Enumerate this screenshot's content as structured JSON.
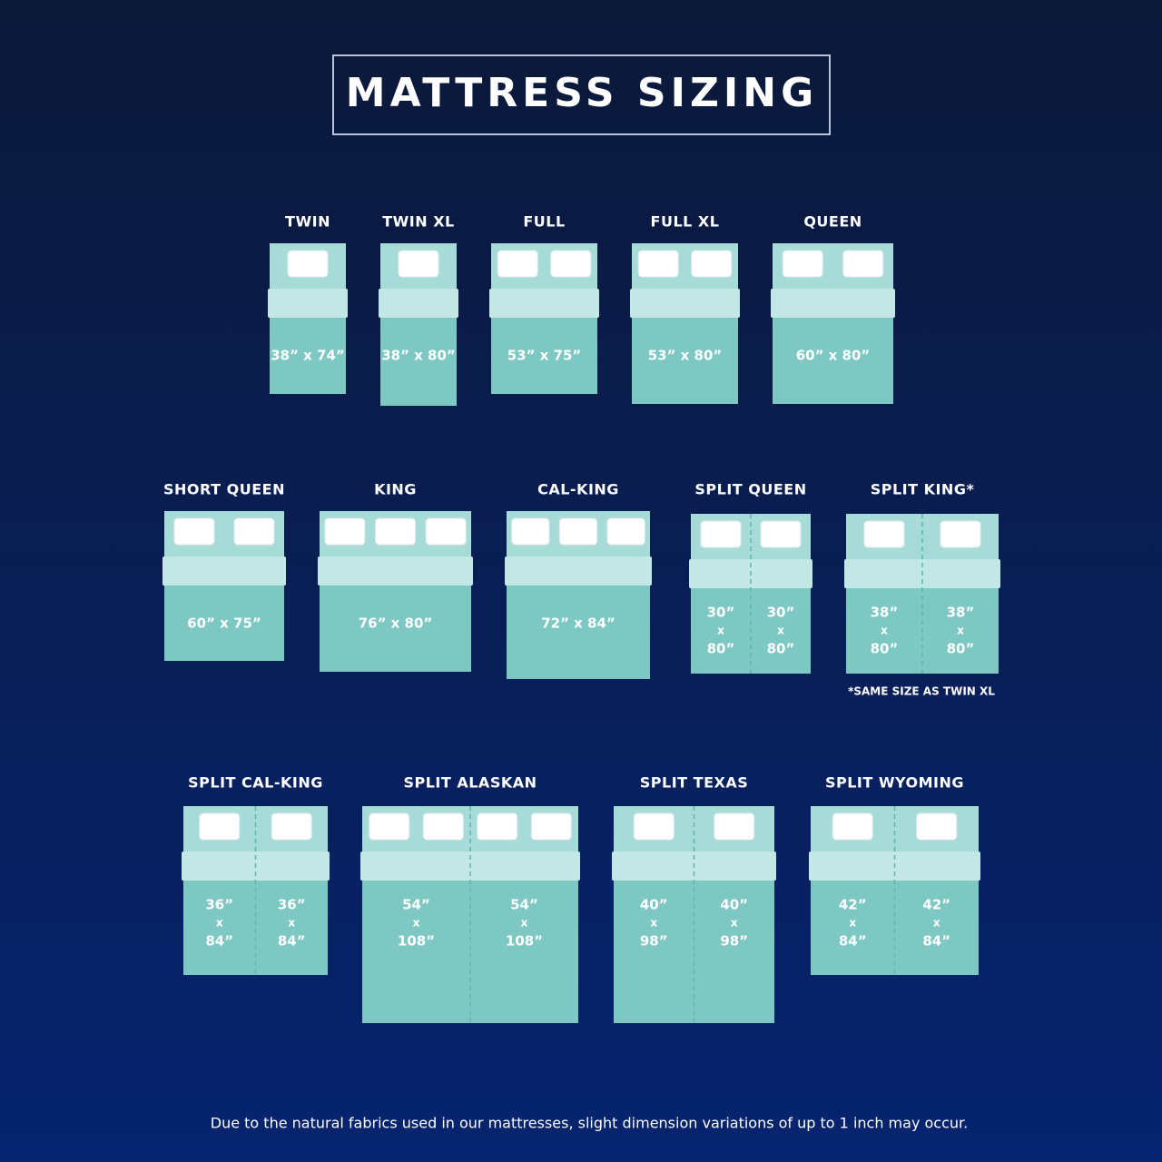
{
  "title": "MATTRESS SIZING",
  "beds": [
    {
      "name": "TWIN",
      "size": "38” x 74”"
    },
    {
      "name": "TWIN XL",
      "size": "38” x 80”"
    },
    {
      "name": "FULL",
      "size": "53” x 75”"
    },
    {
      "name": "FULL XL",
      "size": "53” x 80”"
    },
    {
      "name": "QUEEN",
      "size": "60” x 80”"
    },
    {
      "name": "SHORT QUEEN",
      "size": "60” x 75”"
    },
    {
      "name": "KING",
      "size": "76” x 80”"
    },
    {
      "name": "CAL-KING",
      "size": "72” x 84”"
    },
    {
      "name": "SPLIT QUEEN",
      "halves": [
        [
          "30”",
          "x",
          "80”"
        ],
        [
          "30”",
          "x",
          "80”"
        ]
      ]
    },
    {
      "name": "SPLIT KING*",
      "halves": [
        [
          "38”",
          "x",
          "80”"
        ],
        [
          "38”",
          "x",
          "80”"
        ]
      ]
    },
    {
      "name": "SPLIT CAL-KING",
      "halves": [
        [
          "36”",
          "x",
          "84”"
        ],
        [
          "36”",
          "x",
          "84”"
        ]
      ]
    },
    {
      "name": "SPLIT ALASKAN",
      "halves": [
        [
          "54”",
          "x",
          "108”"
        ],
        [
          "54”",
          "x",
          "108”"
        ]
      ]
    },
    {
      "name": "SPLIT TEXAS",
      "halves": [
        [
          "40”",
          "x",
          "98”"
        ],
        [
          "40”",
          "x",
          "98”"
        ]
      ]
    },
    {
      "name": "SPLIT WYOMING",
      "halves": [
        [
          "42”",
          "x",
          "84”"
        ],
        [
          "42”",
          "x",
          "84”"
        ]
      ]
    }
  ],
  "note": "*SAME SIZE AS TWIN XL",
  "footer": "Due to the natural fabrics used in our mattresses, slight dimension variations of up to 1 inch may occur."
}
